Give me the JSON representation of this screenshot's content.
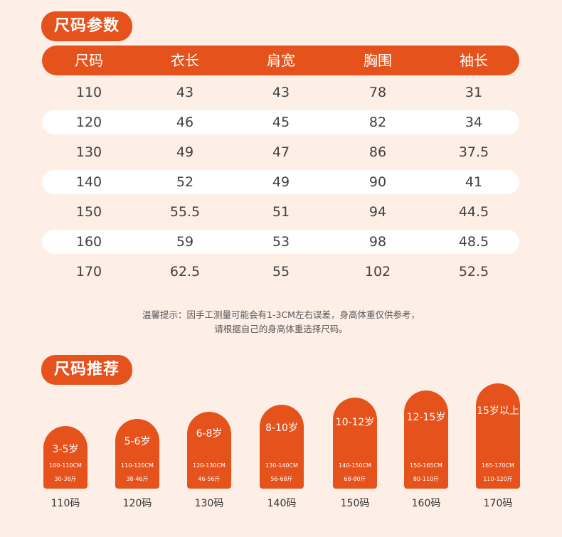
{
  "size_section": {
    "title": "尺码参数",
    "headers": [
      "尺码",
      "衣长",
      "肩宽",
      "胸围",
      "袖长"
    ],
    "rows": [
      [
        "110",
        "43",
        "43",
        "78",
        "31"
      ],
      [
        "120",
        "46",
        "45",
        "82",
        "34"
      ],
      [
        "130",
        "49",
        "47",
        "86",
        "37.5"
      ],
      [
        "140",
        "52",
        "49",
        "90",
        "41"
      ],
      [
        "150",
        "55.5",
        "51",
        "94",
        "44.5"
      ],
      [
        "160",
        "59",
        "53",
        "98",
        "48.5"
      ],
      [
        "170",
        "62.5",
        "55",
        "102",
        "52.5"
      ]
    ]
  },
  "tip": {
    "line1": "温馨提示：因手工测量可能会有1-3CM左右误差，身高体重仅供参考，",
    "line2": "请根据自己的身高体重选择尺码。"
  },
  "recommend_section": {
    "title": "尺码推荐",
    "items": [
      {
        "age": "3-5岁",
        "height": "100-110CM",
        "weight": "30-38斤",
        "size": "110码"
      },
      {
        "age": "5-6岁",
        "height": "110-120CM",
        "weight": "38-46斤",
        "size": "120码"
      },
      {
        "age": "6-8岁",
        "height": "120-130CM",
        "weight": "46-56斤",
        "size": "130码"
      },
      {
        "age": "8-10岁",
        "height": "130-140CM",
        "weight": "56-68斤",
        "size": "140码"
      },
      {
        "age": "10-12岁",
        "height": "140-150CM",
        "weight": "68-80斤",
        "size": "150码"
      },
      {
        "age": "12-15岁",
        "height": "150-165CM",
        "weight": "80-110斤",
        "size": "160码"
      },
      {
        "age": "15岁以上",
        "height": "165-170CM",
        "weight": "110-120斤",
        "size": "170码"
      }
    ]
  },
  "colors": {
    "accent": "#e6521c",
    "background": "#fdeee6"
  }
}
